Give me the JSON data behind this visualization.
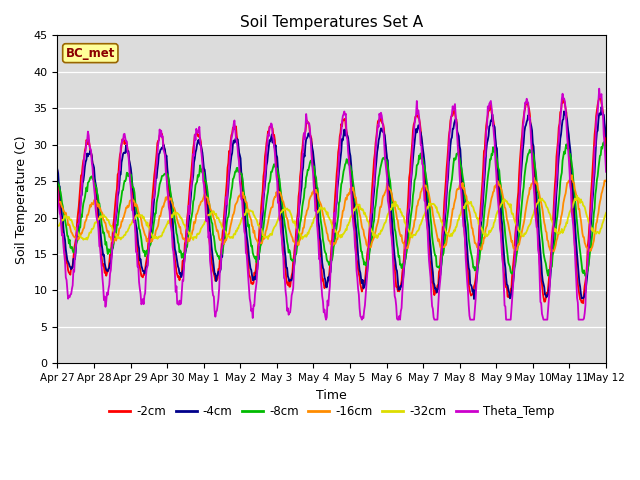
{
  "title": "Soil Temperatures Set A",
  "xlabel": "Time",
  "ylabel": "Soil Temperature (C)",
  "ylim": [
    0,
    45
  ],
  "yticks": [
    0,
    5,
    10,
    15,
    20,
    25,
    30,
    35,
    40,
    45
  ],
  "bg_color": "#dcdcdc",
  "annotation": "BC_met",
  "annotation_color": "#8b0000",
  "annotation_bg": "#ffff99",
  "series_colors": {
    "-2cm": "#ff0000",
    "-4cm": "#00008b",
    "-8cm": "#00bb00",
    "-16cm": "#ff8c00",
    "-32cm": "#dddd00",
    "Theta_Temp": "#cc00cc"
  },
  "tick_labels": [
    "Apr 27",
    "Apr 28",
    "Apr 29",
    "Apr 30",
    "May 1",
    "May 2",
    "May 3",
    "May 4",
    "May 5",
    "May 6",
    "May 7",
    "May 8",
    "May 9",
    "May 10",
    "May 11",
    "May 12"
  ],
  "tick_positions": [
    0,
    1,
    2,
    3,
    4,
    5,
    6,
    7,
    8,
    9,
    10,
    11,
    12,
    13,
    14,
    15
  ]
}
